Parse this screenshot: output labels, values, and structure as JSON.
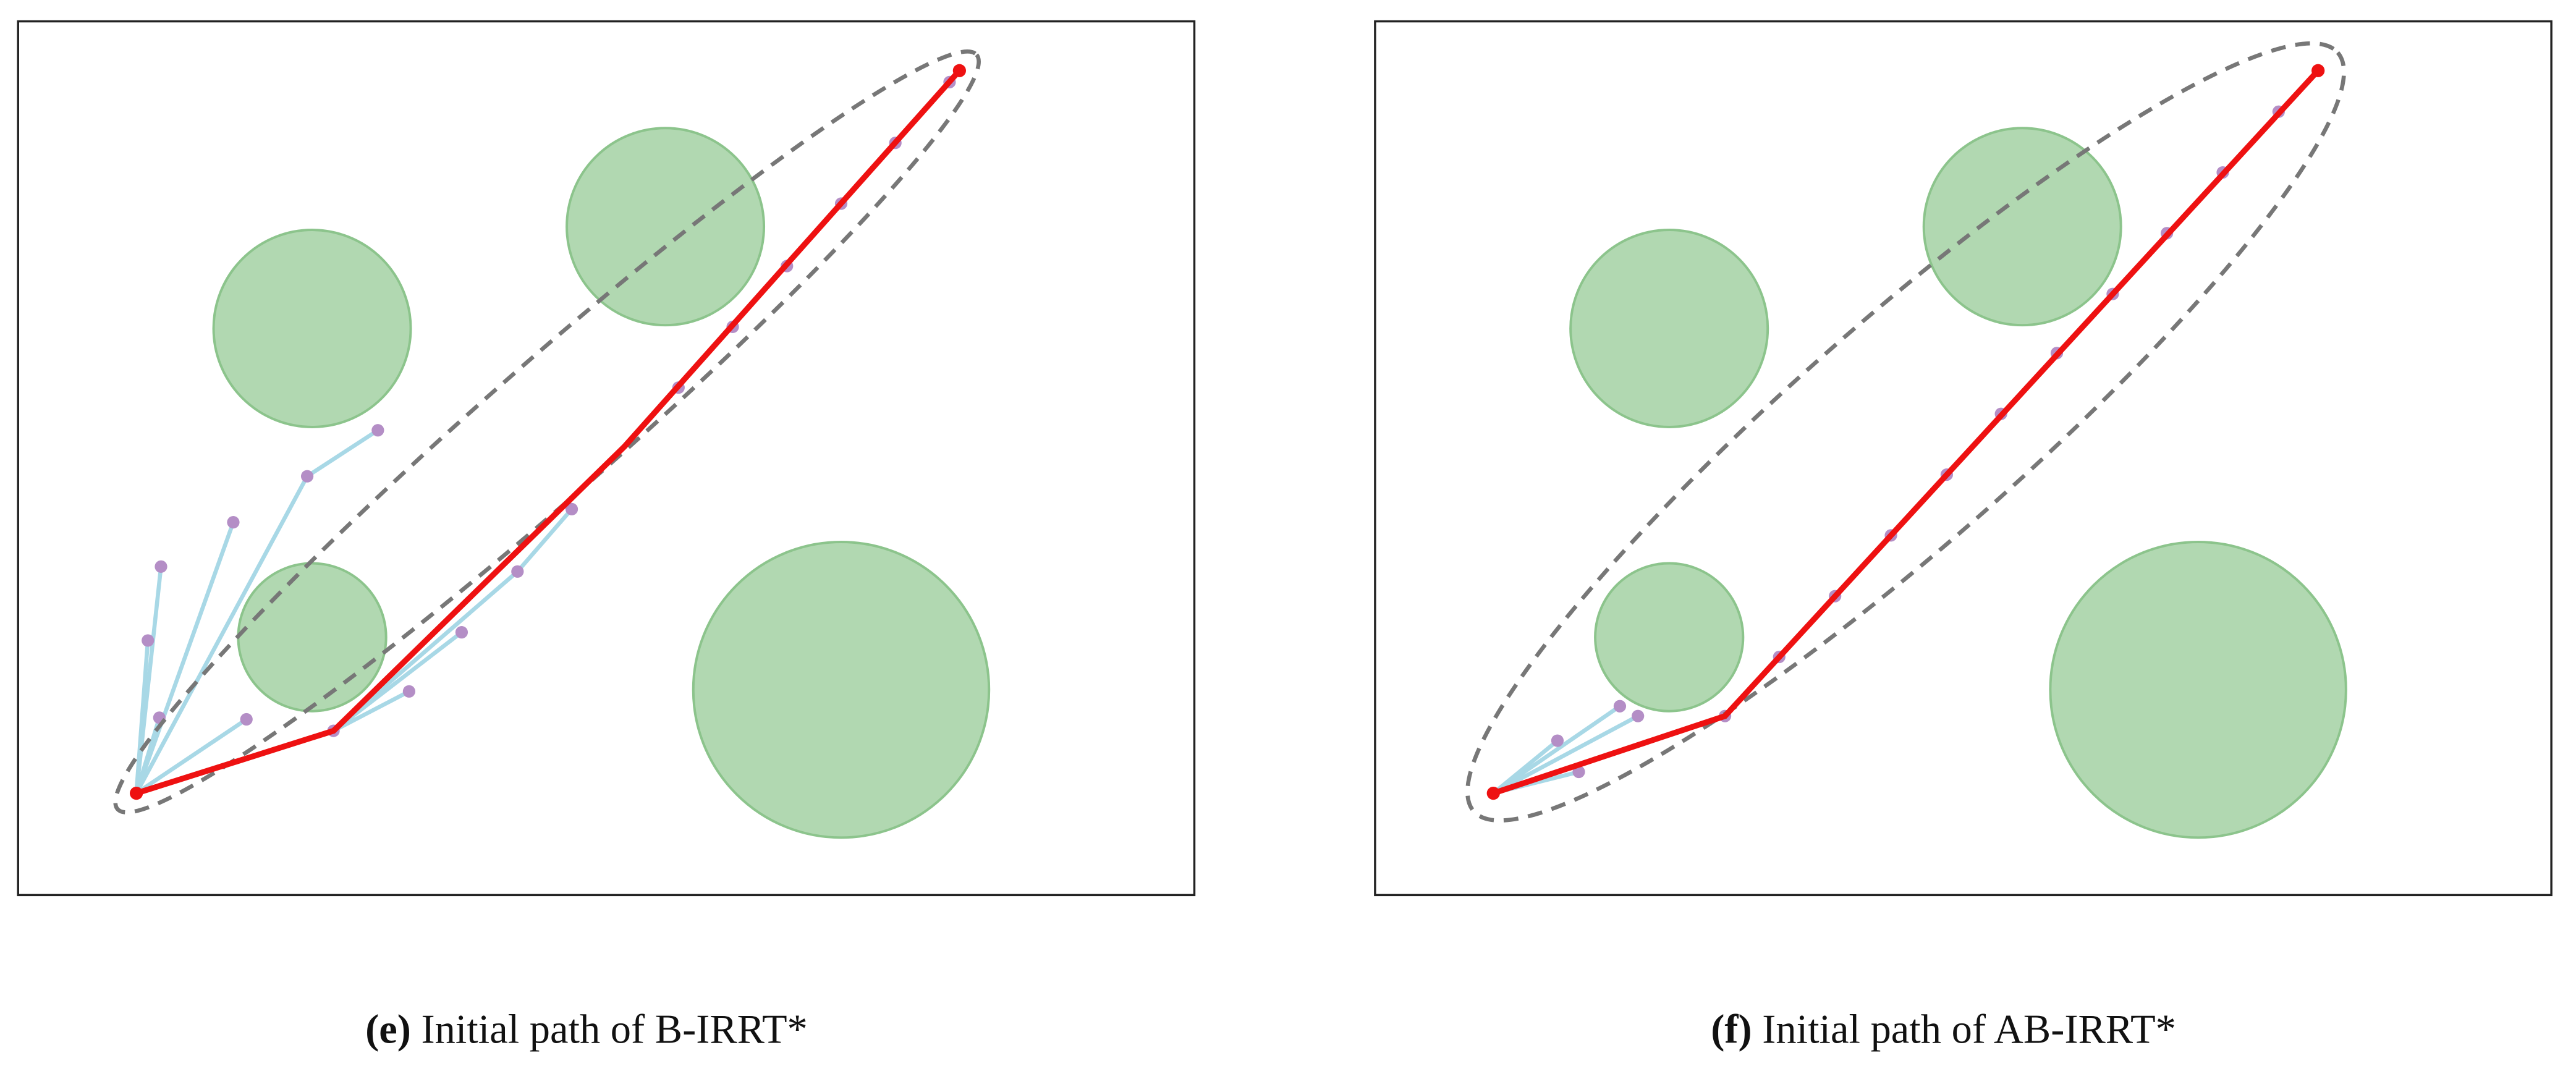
{
  "panels": [
    {
      "label": "(e)",
      "caption": "Initial path of B-IRRT*"
    },
    {
      "label": "(f)",
      "caption": "Initial path of AB-IRRT*"
    }
  ]
}
